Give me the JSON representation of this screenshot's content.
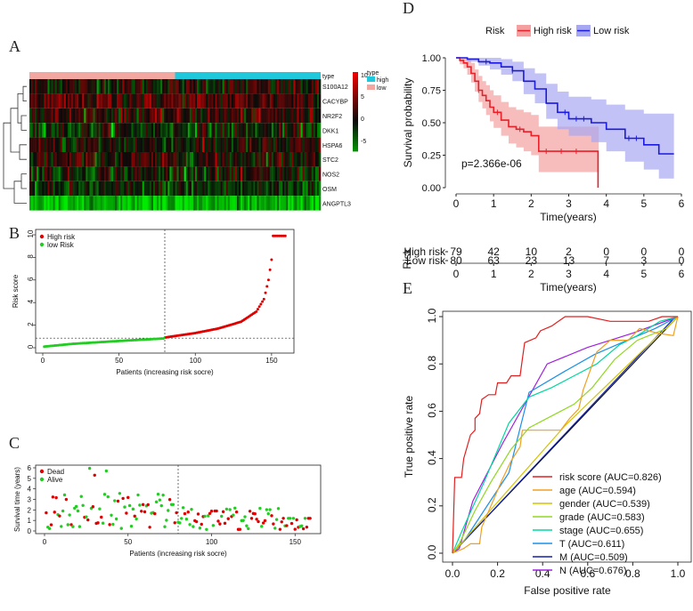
{
  "panels": {
    "A": "A",
    "B": "B",
    "C": "C",
    "D": "D",
    "E": "E"
  },
  "chart_data": [
    {
      "panel": "A",
      "type": "heatmap",
      "annotation_title": "type",
      "annotation_levels": [
        "high",
        "low"
      ],
      "annotation_colors": {
        "high": "#20c8dc",
        "low": "#f2a7a0"
      },
      "genes": [
        "S100A12",
        "CACYBP",
        "NR2F2",
        "DKK1",
        "HSPA6",
        "STC2",
        "NOS2",
        "OSM",
        "ANGPTL3"
      ],
      "gene_means": [
        0.3,
        1.6,
        0.9,
        -0.6,
        0.1,
        0.6,
        -0.2,
        -1.0,
        -4.5
      ],
      "colorbar_ticks": [
        "10",
        "5",
        "0",
        "-5"
      ],
      "colorbar_title": "type",
      "colors": {
        "high": "#e01010",
        "mid": "#000000",
        "low": "#00e000"
      }
    },
    {
      "panel": "B",
      "type": "scatter",
      "ylabel": "Risk score",
      "xlabel": "Patients (increasing risk socre)",
      "x_ticks": [
        "0",
        "50",
        "100",
        "150"
      ],
      "y_ticks": [
        "0",
        "2",
        "4",
        "6",
        "8",
        "10"
      ],
      "xlim": [
        0,
        160
      ],
      "ylim": [
        0,
        10
      ],
      "cutoff_index": 80,
      "cutoff_value": 0.85,
      "series": [
        {
          "name": "High risk",
          "color": "#e00000"
        },
        {
          "name": "low Risk",
          "color": "#22cc22"
        }
      ],
      "curve_knots": [
        [
          1,
          0.1
        ],
        [
          20,
          0.35
        ],
        [
          50,
          0.6
        ],
        [
          79,
          0.82
        ],
        [
          80,
          0.9
        ],
        [
          100,
          1.3
        ],
        [
          115,
          1.7
        ],
        [
          130,
          2.3
        ],
        [
          140,
          3.2
        ],
        [
          145,
          4.3
        ],
        [
          148,
          6.0
        ],
        [
          150,
          7.8
        ],
        [
          151,
          9.9
        ],
        [
          159,
          9.9
        ]
      ]
    },
    {
      "panel": "C",
      "type": "scatter",
      "ylabel": "Survival time (years)",
      "xlabel": "Patients (increasing risk socre)",
      "x_ticks": [
        "0",
        "50",
        "100",
        "150"
      ],
      "y_ticks": [
        "0",
        "1",
        "2",
        "3",
        "4",
        "5",
        "6"
      ],
      "xlim": [
        0,
        160
      ],
      "ylim": [
        0,
        6
      ],
      "cutoff_index": 80,
      "series": [
        {
          "name": "Dead",
          "color": "#e00000"
        },
        {
          "name": "Alive",
          "color": "#22cc22"
        }
      ]
    },
    {
      "panel": "D",
      "type": "line",
      "legend_title": "Risk",
      "series": [
        {
          "name": "High risk",
          "color": "#e8202a",
          "band": "#f4a0a0",
          "times": [
            0,
            0.1,
            0.2,
            0.3,
            0.4,
            0.5,
            0.6,
            0.7,
            0.8,
            0.9,
            1.0,
            1.2,
            1.4,
            1.6,
            1.8,
            2.0,
            2.2,
            3.8
          ],
          "surv": [
            1,
            0.98,
            0.96,
            0.93,
            0.88,
            0.82,
            0.75,
            0.71,
            0.67,
            0.62,
            0.58,
            0.52,
            0.47,
            0.45,
            0.43,
            0.4,
            0.28,
            0.0
          ],
          "lower": [
            1,
            0.95,
            0.92,
            0.87,
            0.81,
            0.74,
            0.66,
            0.61,
            0.56,
            0.51,
            0.46,
            0.4,
            0.34,
            0.31,
            0.28,
            0.25,
            0.12,
            0.0
          ],
          "upper": [
            1,
            1.0,
            1.0,
            0.99,
            0.96,
            0.91,
            0.86,
            0.82,
            0.79,
            0.75,
            0.71,
            0.66,
            0.62,
            0.6,
            0.58,
            0.56,
            0.47,
            0.0
          ]
        },
        {
          "name": "Low risk",
          "color": "#1a1ae0",
          "band": "#a8a8f2",
          "times": [
            0,
            0.3,
            0.6,
            0.9,
            1.2,
            1.5,
            1.8,
            2.1,
            2.4,
            2.7,
            3.0,
            3.3,
            3.6,
            4.0,
            4.5,
            5.0,
            5.4,
            5.8
          ],
          "surv": [
            1,
            0.99,
            0.97,
            0.96,
            0.93,
            0.9,
            0.82,
            0.76,
            0.65,
            0.58,
            0.53,
            0.53,
            0.5,
            0.45,
            0.38,
            0.33,
            0.26,
            0.26
          ],
          "lower": [
            1,
            0.97,
            0.94,
            0.91,
            0.87,
            0.82,
            0.72,
            0.65,
            0.53,
            0.45,
            0.4,
            0.4,
            0.35,
            0.28,
            0.2,
            0.14,
            0.07,
            0.07
          ],
          "upper": [
            1,
            1.0,
            1.0,
            1.0,
            0.99,
            0.97,
            0.92,
            0.88,
            0.8,
            0.74,
            0.7,
            0.7,
            0.68,
            0.64,
            0.6,
            0.57,
            0.57,
            0.57
          ]
        }
      ],
      "pvalue": "p=2.366e-06",
      "ylabel": "Survival probability",
      "xlabel": "Time(years)",
      "x_ticks": [
        "0",
        "1",
        "2",
        "3",
        "4",
        "5",
        "6"
      ],
      "y_ticks": [
        "0.00",
        "0.25",
        "0.50",
        "0.75",
        "1.00"
      ],
      "xlim": [
        0,
        6
      ],
      "ylim": [
        0,
        1
      ]
    },
    {
      "panel": "D",
      "type": "table",
      "title": "Risk",
      "xlabel": "Time(years)",
      "x_ticks": [
        "0",
        "1",
        "2",
        "3",
        "4",
        "5",
        "6"
      ],
      "rows": [
        {
          "label": "High risk",
          "color": "#e8202a",
          "values": [
            "79",
            "42",
            "10",
            "2",
            "0",
            "0",
            "0"
          ]
        },
        {
          "label": "Low risk",
          "color": "#1a1ae0",
          "values": [
            "80",
            "63",
            "23",
            "13",
            "7",
            "3",
            "0"
          ]
        }
      ]
    },
    {
      "panel": "E",
      "type": "line",
      "xlabel": "False positive rate",
      "ylabel": "True positive rate",
      "x_ticks": [
        "0.0",
        "0.2",
        "0.4",
        "0.6",
        "0.8",
        "1.0"
      ],
      "y_ticks": [
        "0.0",
        "0.2",
        "0.4",
        "0.6",
        "0.8",
        "1.0"
      ],
      "xlim": [
        0,
        1
      ],
      "ylim": [
        0,
        1
      ],
      "series": [
        {
          "name": "risk score (AUC=0.826)",
          "color": "#e02020",
          "points": [
            [
              0,
              0
            ],
            [
              0.01,
              0.32
            ],
            [
              0.04,
              0.32
            ],
            [
              0.05,
              0.4
            ],
            [
              0.08,
              0.5
            ],
            [
              0.1,
              0.52
            ],
            [
              0.1,
              0.57
            ],
            [
              0.12,
              0.59
            ],
            [
              0.13,
              0.65
            ],
            [
              0.16,
              0.67
            ],
            [
              0.19,
              0.67
            ],
            [
              0.2,
              0.72
            ],
            [
              0.24,
              0.72
            ],
            [
              0.26,
              0.75
            ],
            [
              0.3,
              0.75
            ],
            [
              0.31,
              0.82
            ],
            [
              0.32,
              0.89
            ],
            [
              0.37,
              0.91
            ],
            [
              0.39,
              0.94
            ],
            [
              0.44,
              0.96
            ],
            [
              0.47,
              0.98
            ],
            [
              0.5,
              1.0
            ],
            [
              0.6,
              1.0
            ],
            [
              0.7,
              0.98
            ],
            [
              0.87,
              0.98
            ],
            [
              0.93,
              1.0
            ],
            [
              1,
              1
            ]
          ]
        },
        {
          "name": "age (AUC=0.594)",
          "color": "#f0a020",
          "points": [
            [
              0,
              0
            ],
            [
              0.05,
              0.02
            ],
            [
              0.08,
              0.04
            ],
            [
              0.12,
              0.04
            ],
            [
              0.13,
              0.11
            ],
            [
              0.22,
              0.31
            ],
            [
              0.26,
              0.39
            ],
            [
              0.3,
              0.45
            ],
            [
              0.31,
              0.52
            ],
            [
              0.4,
              0.52
            ],
            [
              0.48,
              0.52
            ],
            [
              0.52,
              0.57
            ],
            [
              0.56,
              0.61
            ],
            [
              0.58,
              0.69
            ],
            [
              0.64,
              0.85
            ],
            [
              0.7,
              0.9
            ],
            [
              0.78,
              0.9
            ],
            [
              0.83,
              0.95
            ],
            [
              0.91,
              0.93
            ],
            [
              0.98,
              0.92
            ],
            [
              1,
              1
            ]
          ]
        },
        {
          "name": "gender (AUC=0.539)",
          "color": "#d4c400",
          "points": [
            [
              0,
              0
            ],
            [
              0.5,
              0.54
            ],
            [
              1,
              1
            ]
          ]
        },
        {
          "name": "grade (AUC=0.583)",
          "color": "#90d820",
          "points": [
            [
              0,
              0
            ],
            [
              0.03,
              0.04
            ],
            [
              0.1,
              0.18
            ],
            [
              0.17,
              0.3
            ],
            [
              0.26,
              0.44
            ],
            [
              0.34,
              0.53
            ],
            [
              0.44,
              0.58
            ],
            [
              0.54,
              0.63
            ],
            [
              0.62,
              0.7
            ],
            [
              0.72,
              0.82
            ],
            [
              0.82,
              0.9
            ],
            [
              0.95,
              0.95
            ],
            [
              1,
              1
            ]
          ]
        },
        {
          "name": "stage (AUC=0.655)",
          "color": "#00d8a0",
          "points": [
            [
              0,
              0
            ],
            [
              0.04,
              0.09
            ],
            [
              0.14,
              0.3
            ],
            [
              0.25,
              0.55
            ],
            [
              0.34,
              0.66
            ],
            [
              0.44,
              0.7
            ],
            [
              0.54,
              0.75
            ],
            [
              0.64,
              0.8
            ],
            [
              0.74,
              0.88
            ],
            [
              0.82,
              0.92
            ],
            [
              0.92,
              0.98
            ],
            [
              1,
              1
            ]
          ]
        },
        {
          "name": "T (AUC=0.611)",
          "color": "#1890e8",
          "points": [
            [
              0,
              0
            ],
            [
              0.05,
              0.05
            ],
            [
              0.25,
              0.34
            ],
            [
              0.34,
              0.68
            ],
            [
              0.5,
              0.77
            ],
            [
              0.63,
              0.84
            ],
            [
              0.8,
              0.91
            ],
            [
              0.9,
              0.95
            ],
            [
              1,
              1
            ]
          ]
        },
        {
          "name": "M (AUC=0.509)",
          "color": "#1020a8",
          "points": [
            [
              0,
              0
            ],
            [
              0.03,
              0.03
            ],
            [
              0.98,
              0.99
            ],
            [
              1,
              1
            ]
          ]
        },
        {
          "name": "N (AUC=0.676)",
          "color": "#a020e0",
          "points": [
            [
              0,
              0
            ],
            [
              0.03,
              0.02
            ],
            [
              0.09,
              0.22
            ],
            [
              0.22,
              0.46
            ],
            [
              0.42,
              0.8
            ],
            [
              0.6,
              0.87
            ],
            [
              0.8,
              0.93
            ],
            [
              1,
              1
            ]
          ]
        }
      ]
    }
  ]
}
